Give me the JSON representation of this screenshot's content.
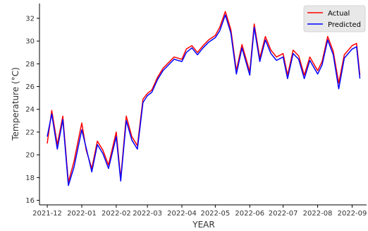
{
  "chart_data": {
    "type": "line",
    "xlabel": "YEAR",
    "ylabel": "Temperature (°C)",
    "ylim": [
      15.6,
      33.3
    ],
    "xlim": [
      "2021-11-24",
      "2022-09-14"
    ],
    "x_ticks": [
      "2021-12",
      "2022-01",
      "2022-02",
      "2022-03",
      "2022-04",
      "2022-05",
      "2022-06",
      "2022-07",
      "2022-08",
      "2022-09"
    ],
    "y_ticks": [
      16,
      18,
      20,
      22,
      24,
      26,
      28,
      30,
      32
    ],
    "grid": false,
    "legend": "top-right",
    "colors": {
      "Actual": "#ff0000",
      "Predicted": "#0000ff"
    },
    "x": [
      "2021-12-01",
      "2021-12-05",
      "2021-12-10",
      "2021-12-15",
      "2021-12-20",
      "2021-12-25",
      "2022-01-01",
      "2022-01-05",
      "2022-01-10",
      "2022-01-15",
      "2022-01-20",
      "2022-01-25",
      "2022-02-01",
      "2022-02-05",
      "2022-02-10",
      "2022-02-15",
      "2022-02-20",
      "2022-02-25",
      "2022-03-01",
      "2022-03-05",
      "2022-03-10",
      "2022-03-15",
      "2022-03-20",
      "2022-03-25",
      "2022-04-01",
      "2022-04-05",
      "2022-04-10",
      "2022-04-15",
      "2022-04-20",
      "2022-04-25",
      "2022-05-01",
      "2022-05-05",
      "2022-05-10",
      "2022-05-15",
      "2022-05-20",
      "2022-05-25",
      "2022-06-01",
      "2022-06-05",
      "2022-06-10",
      "2022-06-15",
      "2022-06-20",
      "2022-06-25",
      "2022-07-01",
      "2022-07-05",
      "2022-07-10",
      "2022-07-15",
      "2022-07-20",
      "2022-07-25",
      "2022-08-01",
      "2022-08-05",
      "2022-08-10",
      "2022-08-15",
      "2022-08-20",
      "2022-08-25",
      "2022-09-01",
      "2022-09-05",
      "2022-09-08"
    ],
    "series": [
      {
        "name": "Actual",
        "values": [
          21.0,
          23.9,
          20.9,
          23.4,
          17.6,
          19.4,
          22.8,
          20.4,
          18.8,
          21.2,
          20.4,
          19.1,
          22.0,
          17.9,
          23.4,
          21.6,
          20.8,
          24.9,
          25.4,
          25.7,
          26.8,
          27.6,
          28.1,
          28.6,
          28.4,
          29.3,
          29.6,
          29.0,
          29.6,
          30.1,
          30.5,
          31.2,
          32.6,
          31.0,
          27.4,
          29.7,
          27.3,
          31.5,
          28.5,
          30.4,
          29.2,
          28.6,
          28.9,
          27.0,
          29.2,
          28.7,
          27.0,
          28.6,
          27.4,
          28.2,
          30.4,
          29.1,
          26.3,
          28.8,
          29.6,
          29.8,
          27.0
        ]
      },
      {
        "name": "Predicted",
        "values": [
          21.6,
          23.6,
          20.5,
          23.1,
          17.3,
          18.9,
          22.2,
          20.6,
          18.5,
          20.9,
          20.1,
          18.8,
          21.6,
          17.7,
          23.0,
          21.3,
          20.5,
          24.6,
          25.2,
          25.5,
          26.6,
          27.4,
          27.9,
          28.4,
          28.2,
          29.0,
          29.4,
          28.8,
          29.4,
          29.9,
          30.3,
          30.9,
          32.3,
          30.7,
          27.1,
          29.4,
          27.0,
          31.2,
          28.2,
          30.1,
          28.9,
          28.3,
          28.6,
          26.7,
          28.9,
          28.4,
          26.7,
          28.3,
          27.1,
          27.9,
          30.1,
          28.8,
          25.8,
          28.5,
          29.3,
          29.5,
          26.7
        ]
      }
    ]
  }
}
